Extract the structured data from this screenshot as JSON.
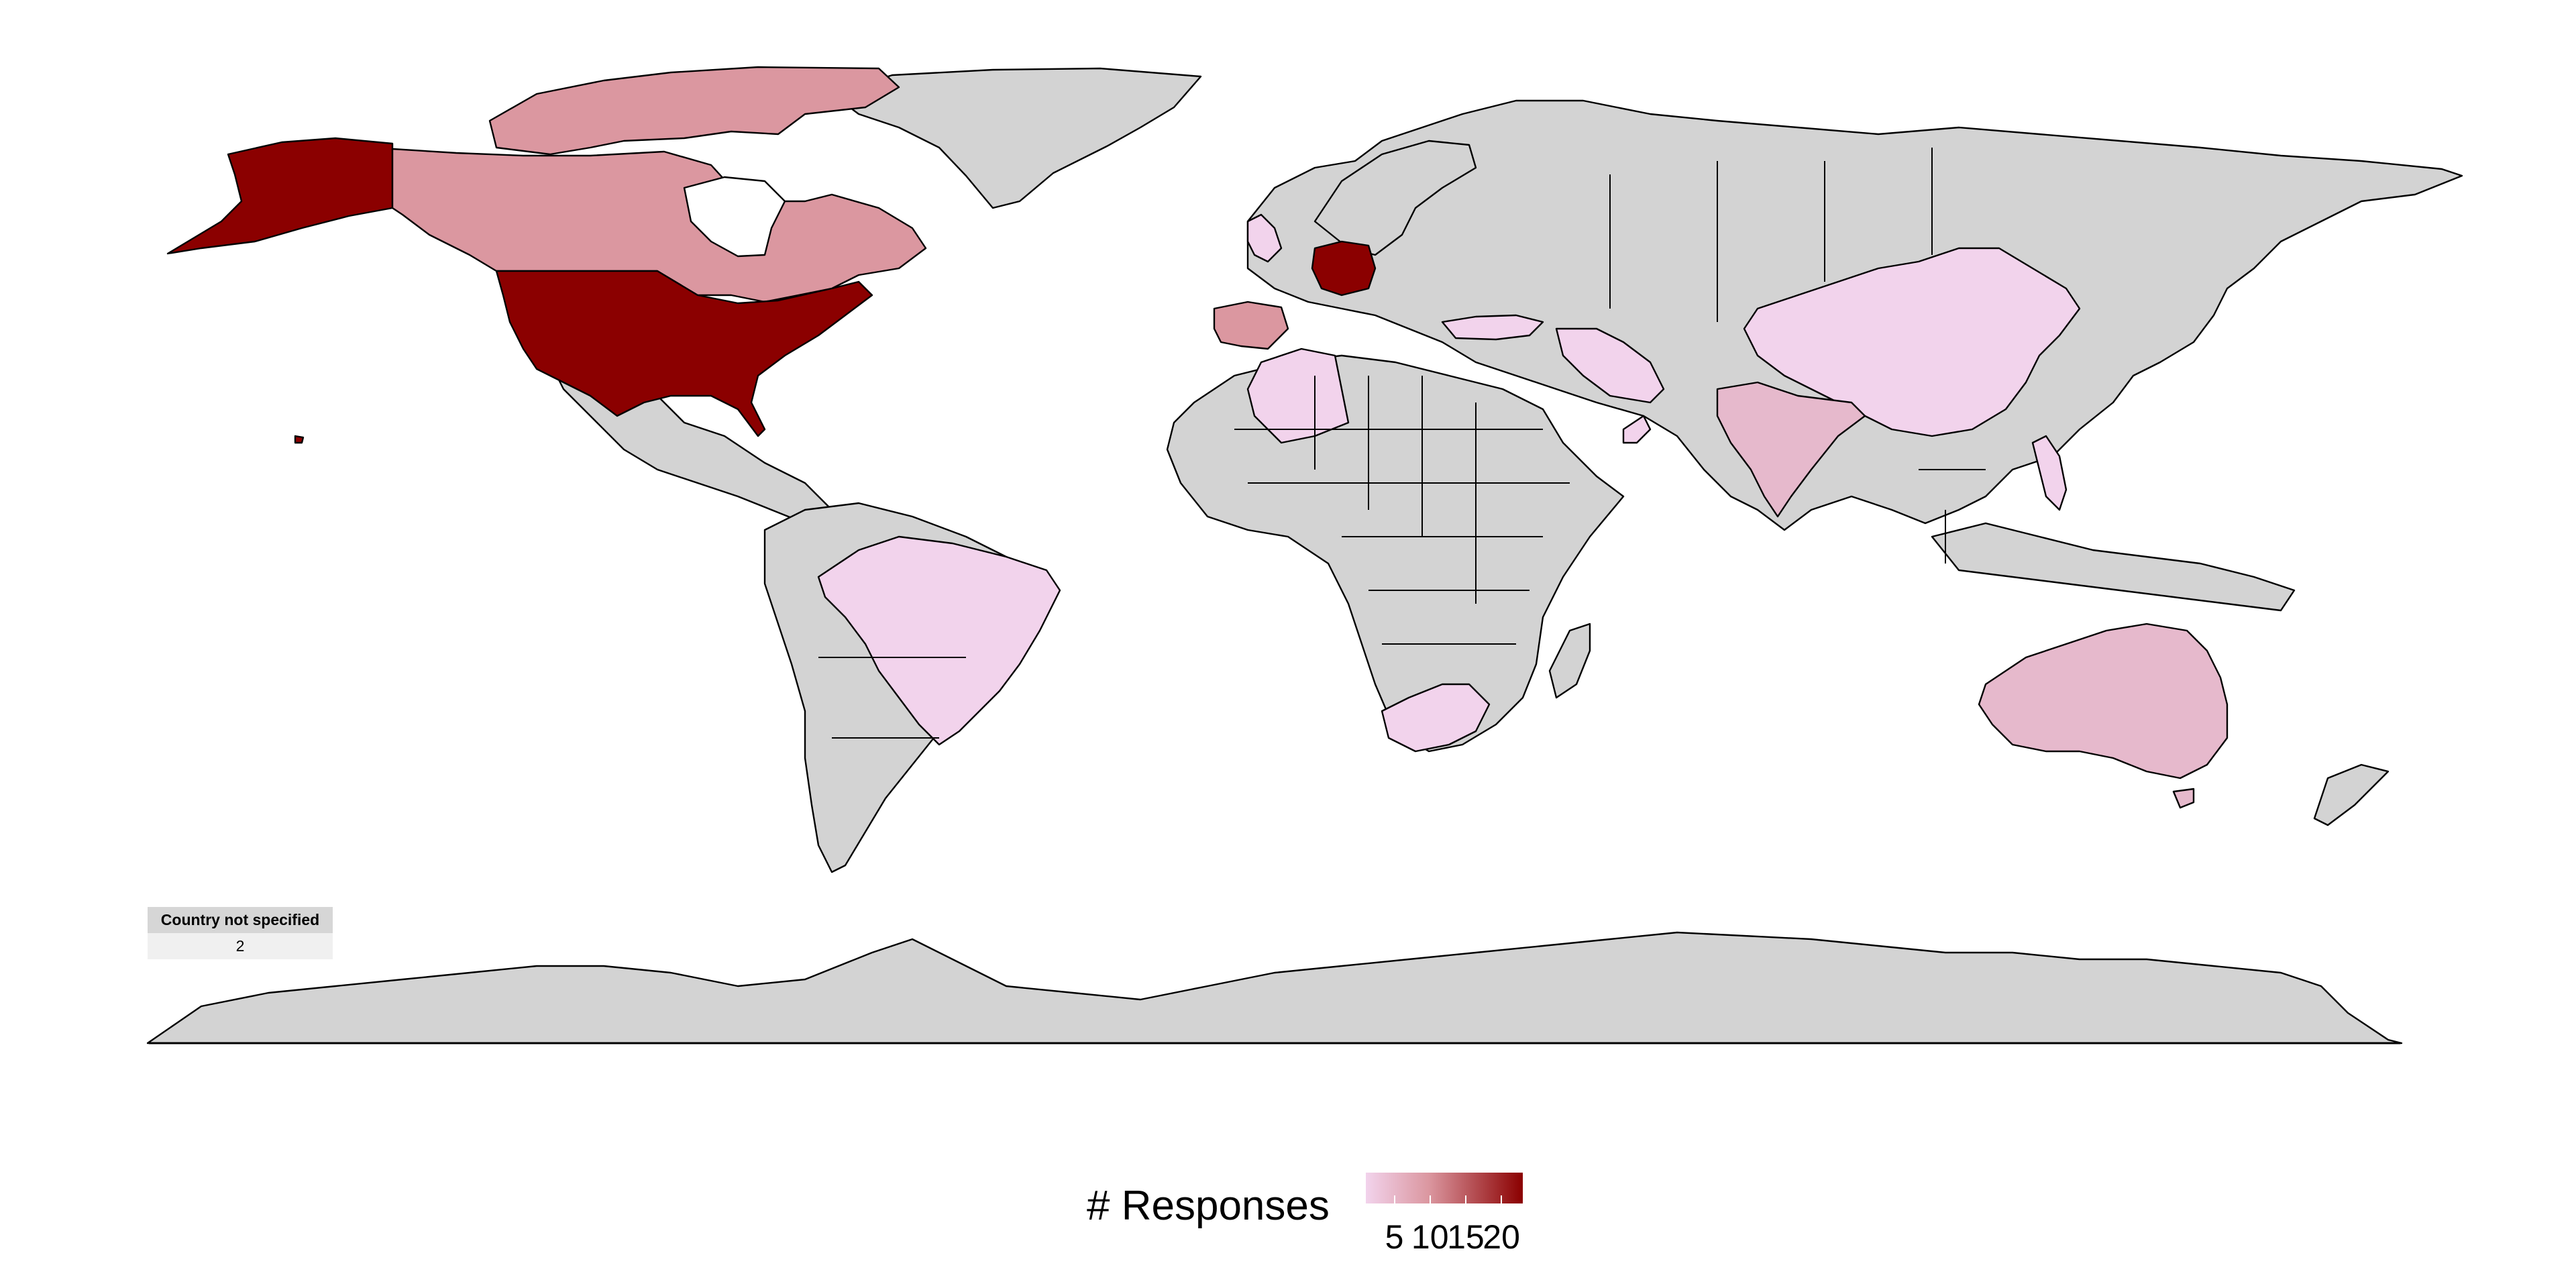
{
  "map": {
    "colors": {
      "ocean": "#ffffff",
      "no_data": "#d3d3d3",
      "low": "#f2d3ec",
      "mid_low": "#e6b9cc",
      "mid": "#db97a0",
      "high": "#8b0000"
    },
    "regions": [
      {
        "name": "United States",
        "fill": "high"
      },
      {
        "name": "Alaska",
        "fill": "high"
      },
      {
        "name": "Germany",
        "fill": "high"
      },
      {
        "name": "Canada",
        "fill": "mid"
      },
      {
        "name": "Spain",
        "fill": "mid"
      },
      {
        "name": "Brazil",
        "fill": "low"
      },
      {
        "name": "China",
        "fill": "low"
      },
      {
        "name": "India",
        "fill": "mid_low"
      },
      {
        "name": "Australia",
        "fill": "mid_low"
      },
      {
        "name": "South Africa",
        "fill": "low"
      },
      {
        "name": "Algeria",
        "fill": "low"
      },
      {
        "name": "Iran",
        "fill": "low"
      },
      {
        "name": "Turkey",
        "fill": "low"
      },
      {
        "name": "United Kingdom",
        "fill": "low"
      },
      {
        "name": "Oman",
        "fill": "low"
      },
      {
        "name": "Philippines",
        "fill": "low"
      }
    ]
  },
  "not_specified": {
    "header": "Country not specified",
    "value": "2"
  },
  "legend": {
    "title": "# Responses",
    "ticks": [
      {
        "label": "5",
        "value": 5
      },
      {
        "label": "10",
        "value": 10
      },
      {
        "label": "15",
        "value": 15
      },
      {
        "label": "20",
        "value": 20
      }
    ],
    "range": [
      1,
      23
    ]
  }
}
